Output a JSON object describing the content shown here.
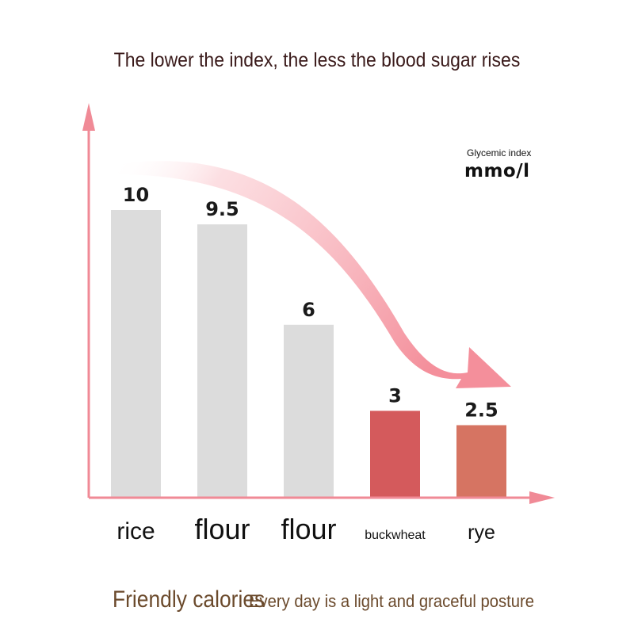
{
  "title": "The lower the index, the less the blood sugar rises",
  "unit": {
    "line1": "Glycemic index",
    "line2": "mmo/l"
  },
  "footer": {
    "left": "Friendly calories",
    "right": "Every day is a light and graceful posture"
  },
  "colors": {
    "bar_gray": "#dcdcdc",
    "bar_buckwheat": "#d45a5c",
    "bar_rye": "#d67462",
    "axis": "#f08a96",
    "arrow": "#f6a7b0"
  },
  "chart_data": {
    "type": "bar",
    "categories": [
      "rice",
      "flour",
      "flour",
      "buckwheat",
      "rye"
    ],
    "values": [
      10,
      9.5,
      6,
      3,
      2.5
    ],
    "value_labels": [
      "10",
      "9.5",
      "6",
      "3",
      "2.5"
    ],
    "title": "The lower the index, the less the blood sugar rises",
    "ylabel": "Glycemic index mmo/l",
    "xlabel": "",
    "ylim": [
      0,
      10
    ],
    "grid": false,
    "legend": "none"
  }
}
